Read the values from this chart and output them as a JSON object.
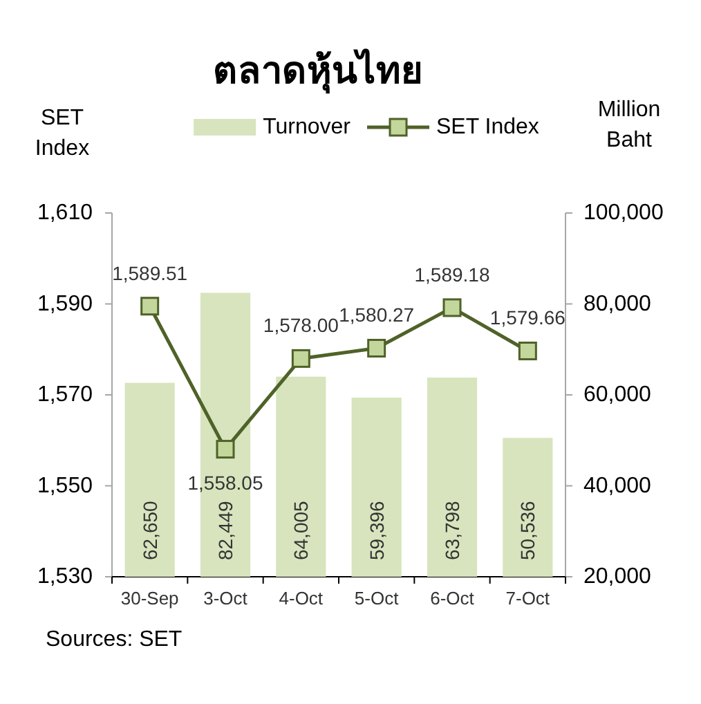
{
  "chart_data": {
    "type": "bar",
    "title": "ตลาดหุ้นไทย",
    "ylabel": "SET Index",
    "y2label": "Million Baht",
    "categories": [
      "30-Sep",
      "3-Oct",
      "4-Oct",
      "5-Oct",
      "6-Oct",
      "7-Oct"
    ],
    "series": [
      {
        "name": "Turnover",
        "axis": "y2",
        "color": "#d7e4bd",
        "values": [
          62650,
          82449,
          64005,
          59396,
          63798,
          50536
        ],
        "value_labels": [
          "62,650",
          "82,449",
          "64,005",
          "59,396",
          "63,798",
          "50,536"
        ]
      },
      {
        "name": "SET Index",
        "type": "line",
        "axis": "y",
        "color": "#4f6228",
        "values": [
          1589.51,
          1558.05,
          1578.0,
          1580.27,
          1589.18,
          1579.66
        ],
        "value_labels": [
          "1,589.51",
          "1,558.05",
          "1,578.00",
          "1,580.27",
          "1,589.18",
          "1,579.66"
        ]
      }
    ],
    "ylim": [
      1530,
      1610
    ],
    "yticks": [
      {
        "value": 1530,
        "label": "1,530"
      },
      {
        "value": 1550,
        "label": "1,550"
      },
      {
        "value": 1570,
        "label": "1,570"
      },
      {
        "value": 1590,
        "label": "1,590"
      },
      {
        "value": 1610,
        "label": "1,610"
      }
    ],
    "y2lim": [
      20000,
      100000
    ],
    "y2ticks": [
      {
        "value": 20000,
        "label": "20,000"
      },
      {
        "value": 40000,
        "label": "40,000"
      },
      {
        "value": 60000,
        "label": "60,000"
      },
      {
        "value": 80000,
        "label": "80,000"
      },
      {
        "value": 100000,
        "label": "100,000"
      }
    ],
    "legend": "top",
    "marker": "square",
    "annotations": [
      "Sources: SET"
    ]
  }
}
